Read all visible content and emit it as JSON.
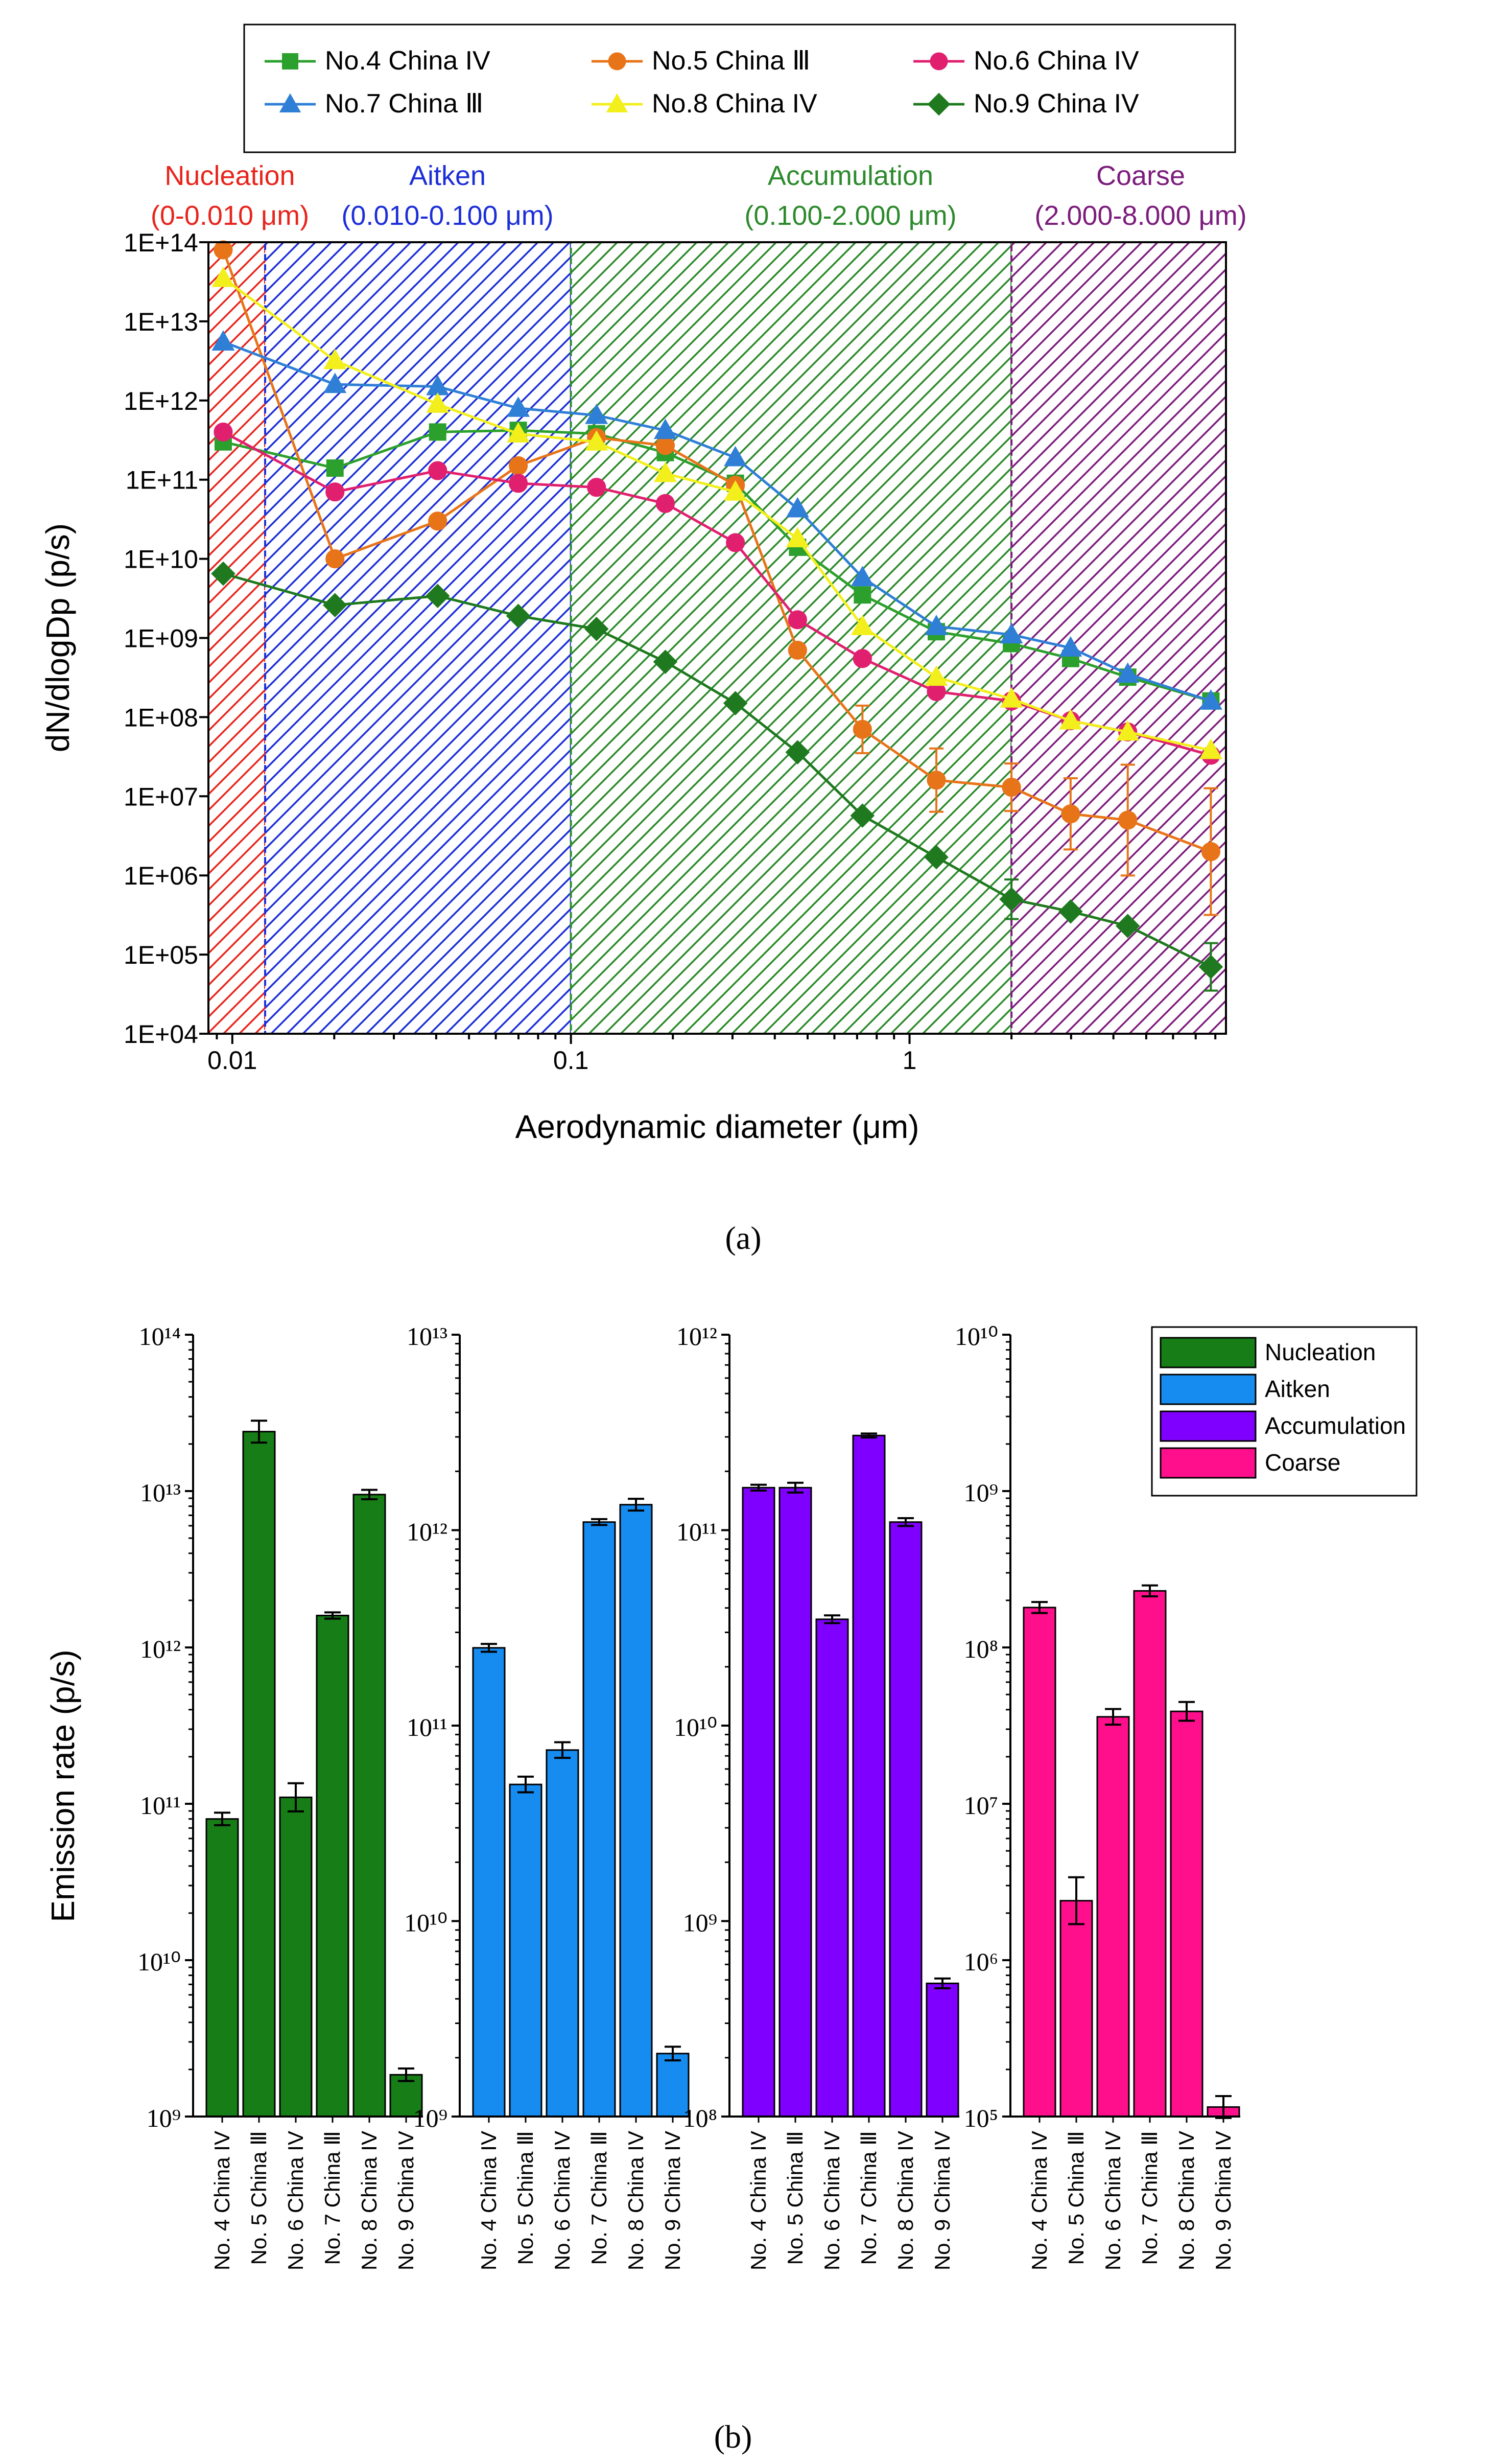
{
  "panel_a_label": "(a)",
  "panel_b_label": "(b)",
  "colors": {
    "no4": "#2ca02c",
    "no5": "#e8741a",
    "no6": "#e0206f",
    "no7": "#2f7fd6",
    "no8": "#f2ef1c",
    "no9": "#1f7a1f",
    "nucleation_region": "#e8241c",
    "aitken_region": "#1c2ed8",
    "accumulation_region": "#2c8a2c",
    "coarse_region": "#7c1c7c",
    "nucleation_bar": "#177d17",
    "aitken_bar": "#168bf0",
    "accumulation_bar": "#8000ff",
    "coarse_bar": "#ff0f8c"
  },
  "chart_data": [
    {
      "type": "line",
      "title": "",
      "xlabel": "Aerodynamic diameter (μm)",
      "ylabel": "dN/dlogDp (p/s)",
      "xscale": "log",
      "yscale": "log",
      "xlim": [
        0.0085,
        8.6
      ],
      "ylim": [
        10000,
        100000000000000.0
      ],
      "x_tick_values": [
        0.01,
        0.1,
        1
      ],
      "x_tick_labels": [
        "0.01",
        "0.1",
        "1"
      ],
      "y_tick_values": [
        10000.0,
        100000.0,
        1000000.0,
        10000000.0,
        100000000.0,
        1000000000.0,
        10000000000.0,
        100000000000.0,
        1000000000000.0,
        10000000000000.0,
        100000000000000.0
      ],
      "y_tick_labels": [
        "1E+04",
        "1E+05",
        "1E+06",
        "1E+07",
        "1E+08",
        "1E+09",
        "1E+10",
        "1E+11",
        "1E+12",
        "1E+13",
        "1E+14"
      ],
      "legend_position": "top-center",
      "regions": [
        {
          "name": "Nucleation",
          "range_label": "(0-0.010 μm)",
          "x_start": 0.0085,
          "x_end": 0.0125,
          "color_key": "nucleation_region"
        },
        {
          "name": "Aitken",
          "range_label": "(0.010-0.100 μm)",
          "x_start": 0.0125,
          "x_end": 0.1,
          "color_key": "aitken_region"
        },
        {
          "name": "Accumulation",
          "range_label": "(0.100-2.000 μm)",
          "x_start": 0.1,
          "x_end": 2.0,
          "color_key": "accumulation_region"
        },
        {
          "name": "Coarse",
          "range_label": "(2.000-8.000 μm)",
          "x_start": 2.0,
          "x_end": 8.6,
          "color_key": "coarse_region"
        }
      ],
      "x": [
        0.0094,
        0.0201,
        0.0404,
        0.0699,
        0.119,
        0.19,
        0.306,
        0.467,
        0.726,
        1.2,
        2.0,
        2.99,
        4.41,
        7.76
      ],
      "series": [
        {
          "name": "No.4 China IV",
          "marker": "square",
          "color_key": "no4",
          "values": [
            300000000000.0,
            140000000000.0,
            400000000000.0,
            420000000000.0,
            380000000000.0,
            220000000000.0,
            90000000000.0,
            14000000000.0,
            3500000000.0,
            1200000000.0,
            850000000.0,
            550000000.0,
            320000000.0,
            160000000.0
          ],
          "errors": [
            0,
            0,
            0,
            0,
            0,
            0,
            0,
            0,
            0,
            0,
            0,
            0,
            0,
            0
          ]
        },
        {
          "name": "No.5 China Ⅲ",
          "marker": "circle",
          "color_key": "no5",
          "values": [
            80000000000000.0,
            10000000000.0,
            30000000000.0,
            150000000000.0,
            340000000000.0,
            270000000000.0,
            85000000000.0,
            700000000.0,
            70000000.0,
            16000000.0,
            13000000.0,
            6000000.0,
            5000000.0,
            2000000.0
          ],
          "errors": [
            0,
            0,
            0,
            0,
            0,
            0,
            0,
            0,
            0.3,
            0.4,
            0.3,
            0.45,
            0.7,
            0.8
          ]
        },
        {
          "name": "No.6 China IV",
          "marker": "circle",
          "color_key": "no6",
          "values": [
            400000000000.0,
            70000000000.0,
            130000000000.0,
            90000000000.0,
            80000000000.0,
            50000000000.0,
            16000000000.0,
            1700000000.0,
            550000000.0,
            210000000.0,
            160000000.0,
            90000000.0,
            65000000.0,
            33000000.0
          ],
          "errors": [
            0,
            0,
            0,
            0,
            0,
            0,
            0,
            0,
            0,
            0,
            0,
            0,
            0,
            0
          ]
        },
        {
          "name": "No.7 China Ⅲ",
          "marker": "triangle",
          "color_key": "no7",
          "values": [
            5500000000000.0,
            1600000000000.0,
            1500000000000.0,
            800000000000.0,
            650000000000.0,
            420000000000.0,
            190000000000.0,
            43000000000.0,
            5800000000.0,
            1400000000.0,
            1100000000.0,
            750000000.0,
            350000000.0,
            160000000.0
          ],
          "errors": [
            0,
            0,
            0,
            0,
            0,
            0,
            0,
            0,
            0,
            0,
            0,
            0,
            0,
            0
          ]
        },
        {
          "name": "No.8 China IV",
          "marker": "triangle",
          "color_key": "no8",
          "values": [
            35000000000000.0,
            3200000000000.0,
            900000000000.0,
            380000000000.0,
            300000000000.0,
            120000000000.0,
            70000000000.0,
            18000000000.0,
            1400000000.0,
            320000000.0,
            170000000.0,
            90000000.0,
            65000000.0,
            38000000.0
          ],
          "errors": [
            0,
            0,
            0,
            0,
            0,
            0,
            0,
            0,
            0,
            0,
            0,
            0,
            0,
            0
          ]
        },
        {
          "name": "No.9 China IV",
          "marker": "diamond",
          "color_key": "no9",
          "values": [
            6500000000.0,
            2600000000.0,
            3400000000.0,
            1900000000.0,
            1300000000.0,
            500000000.0,
            150000000.0,
            36000000.0,
            5700000.0,
            1700000.0,
            500000.0,
            350000.0,
            230000.0,
            70000.0
          ],
          "errors": [
            0,
            0,
            0,
            0,
            0,
            0,
            0,
            0,
            0,
            0,
            0.25,
            0,
            0,
            0.3
          ]
        }
      ]
    },
    {
      "type": "bar",
      "yscale": "log",
      "ylabel": "Emission rate (p/s)",
      "categories": [
        "No. 4 China IV",
        "No. 5 China Ⅲ",
        "No. 6 China IV",
        "No. 7 China Ⅲ",
        "No. 8 China IV",
        "No. 9 China IV"
      ],
      "legend": [
        "Nucleation",
        "Aitken",
        "Accumulation",
        "Coarse"
      ],
      "legend_position": "top-right",
      "subplots": [
        {
          "name": "Nucleation",
          "color_key": "nucleation_bar",
          "ylim_exp": [
            9,
            14
          ],
          "values": [
            80000000000.0,
            24000000000000.0,
            110000000000.0,
            1600000000000.0,
            9500000000000.0,
            1850000000.0
          ],
          "errors": [
            0.04,
            0.07,
            0.09,
            0.02,
            0.03,
            0.04
          ]
        },
        {
          "name": "Aitken",
          "color_key": "aitken_bar",
          "ylim_exp": [
            9,
            13
          ],
          "values": [
            250000000000.0,
            50000000000.0,
            75000000000.0,
            1100000000000.0,
            1350000000000.0,
            2100000000.0
          ],
          "errors": [
            0.02,
            0.04,
            0.04,
            0.015,
            0.03,
            0.035
          ]
        },
        {
          "name": "Accumulation",
          "color_key": "accumulation_bar",
          "ylim_exp": [
            8,
            12
          ],
          "values": [
            165000000000.0,
            165000000000.0,
            35000000000.0,
            305000000000.0,
            110000000000.0,
            480000000.0
          ],
          "errors": [
            0.015,
            0.025,
            0.02,
            0.01,
            0.02,
            0.025
          ]
        },
        {
          "name": "Coarse",
          "color_key": "coarse_bar",
          "ylim_exp": [
            5,
            10
          ],
          "values": [
            180000000.0,
            2400000.0,
            36000000.0,
            230000000.0,
            39000000.0,
            115000.0
          ],
          "errors": [
            0.035,
            0.15,
            0.05,
            0.035,
            0.06,
            0.07
          ]
        }
      ]
    }
  ]
}
